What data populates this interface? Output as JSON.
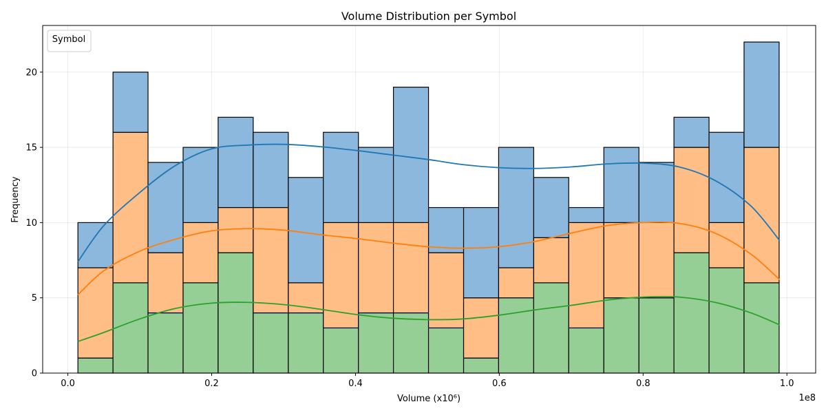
{
  "chart_data": {
    "type": "bar",
    "stacked": true,
    "title": "Volume Distribution per Symbol",
    "xlabel": "Volume (x10⁶)",
    "ylabel": "Frequency",
    "x_offset_text": "1e8",
    "legend_title": "Symbol",
    "legend_position": "top-left",
    "grid": true,
    "xlim": [
      -0.035,
      1.04
    ],
    "ylim": [
      0,
      23.1
    ],
    "x_ticks": [
      "0.0",
      "0.2",
      "0.4",
      "0.6",
      "0.8",
      "1.0"
    ],
    "y_ticks": [
      "0",
      "5",
      "10",
      "15",
      "20"
    ],
    "bin_edges": [
      0.014,
      0.0628,
      0.1115,
      0.1603,
      0.209,
      0.2578,
      0.3066,
      0.3553,
      0.4041,
      0.4528,
      0.5016,
      0.5504,
      0.5991,
      0.6479,
      0.6966,
      0.7454,
      0.7942,
      0.8429,
      0.8917,
      0.9404,
      0.9892
    ],
    "colors": {
      "bottom_fill": "#95cf95",
      "middle_fill": "#ffbe86",
      "top_fill": "#8bb8dc",
      "bottom_line": "#2ca02c",
      "middle_line": "#ff7f0e",
      "top_line": "#1f77b4"
    },
    "series": [
      {
        "values": [
          1,
          6,
          4,
          6,
          8,
          4,
          4,
          3,
          4,
          4,
          3,
          1,
          5,
          6,
          3,
          5,
          5,
          8,
          7,
          6
        ]
      },
      {
        "values": [
          6,
          10,
          4,
          4,
          3,
          7,
          2,
          7,
          6,
          6,
          5,
          4,
          2,
          3,
          7,
          5,
          5,
          7,
          3,
          9
        ]
      },
      {
        "values": [
          3,
          4,
          6,
          5,
          6,
          5,
          7,
          6,
          5,
          9,
          3,
          6,
          8,
          4,
          1,
          5,
          4,
          2,
          6,
          7
        ]
      }
    ],
    "kde": [
      {
        "x": [
          0.014,
          0.05,
          0.1,
          0.15,
          0.2,
          0.25,
          0.3,
          0.35,
          0.4,
          0.45,
          0.5,
          0.55,
          0.6,
          0.65,
          0.7,
          0.75,
          0.8,
          0.85,
          0.9,
          0.95,
          0.99
        ],
        "y": [
          2.1,
          2.7,
          3.6,
          4.3,
          4.65,
          4.7,
          4.55,
          4.25,
          3.9,
          3.65,
          3.55,
          3.6,
          3.85,
          4.2,
          4.5,
          4.85,
          5.05,
          5.05,
          4.7,
          4.0,
          3.2
        ]
      },
      {
        "x": [
          0.014,
          0.05,
          0.1,
          0.15,
          0.2,
          0.25,
          0.3,
          0.35,
          0.4,
          0.45,
          0.5,
          0.55,
          0.6,
          0.65,
          0.7,
          0.75,
          0.8,
          0.85,
          0.9,
          0.95,
          0.99
        ],
        "y": [
          5.2,
          6.8,
          8.1,
          8.9,
          9.45,
          9.6,
          9.5,
          9.2,
          8.95,
          8.65,
          8.4,
          8.3,
          8.4,
          8.75,
          9.3,
          9.8,
          10.0,
          9.95,
          9.3,
          7.9,
          6.2
        ]
      },
      {
        "x": [
          0.014,
          0.05,
          0.1,
          0.15,
          0.2,
          0.25,
          0.3,
          0.35,
          0.4,
          0.45,
          0.5,
          0.55,
          0.6,
          0.65,
          0.7,
          0.75,
          0.8,
          0.85,
          0.9,
          0.95,
          0.99
        ],
        "y": [
          7.4,
          9.8,
          12.0,
          13.8,
          14.9,
          15.15,
          15.2,
          15.05,
          14.8,
          14.5,
          14.2,
          13.85,
          13.65,
          13.6,
          13.7,
          13.9,
          13.95,
          13.7,
          12.8,
          11.1,
          8.8
        ]
      }
    ]
  }
}
